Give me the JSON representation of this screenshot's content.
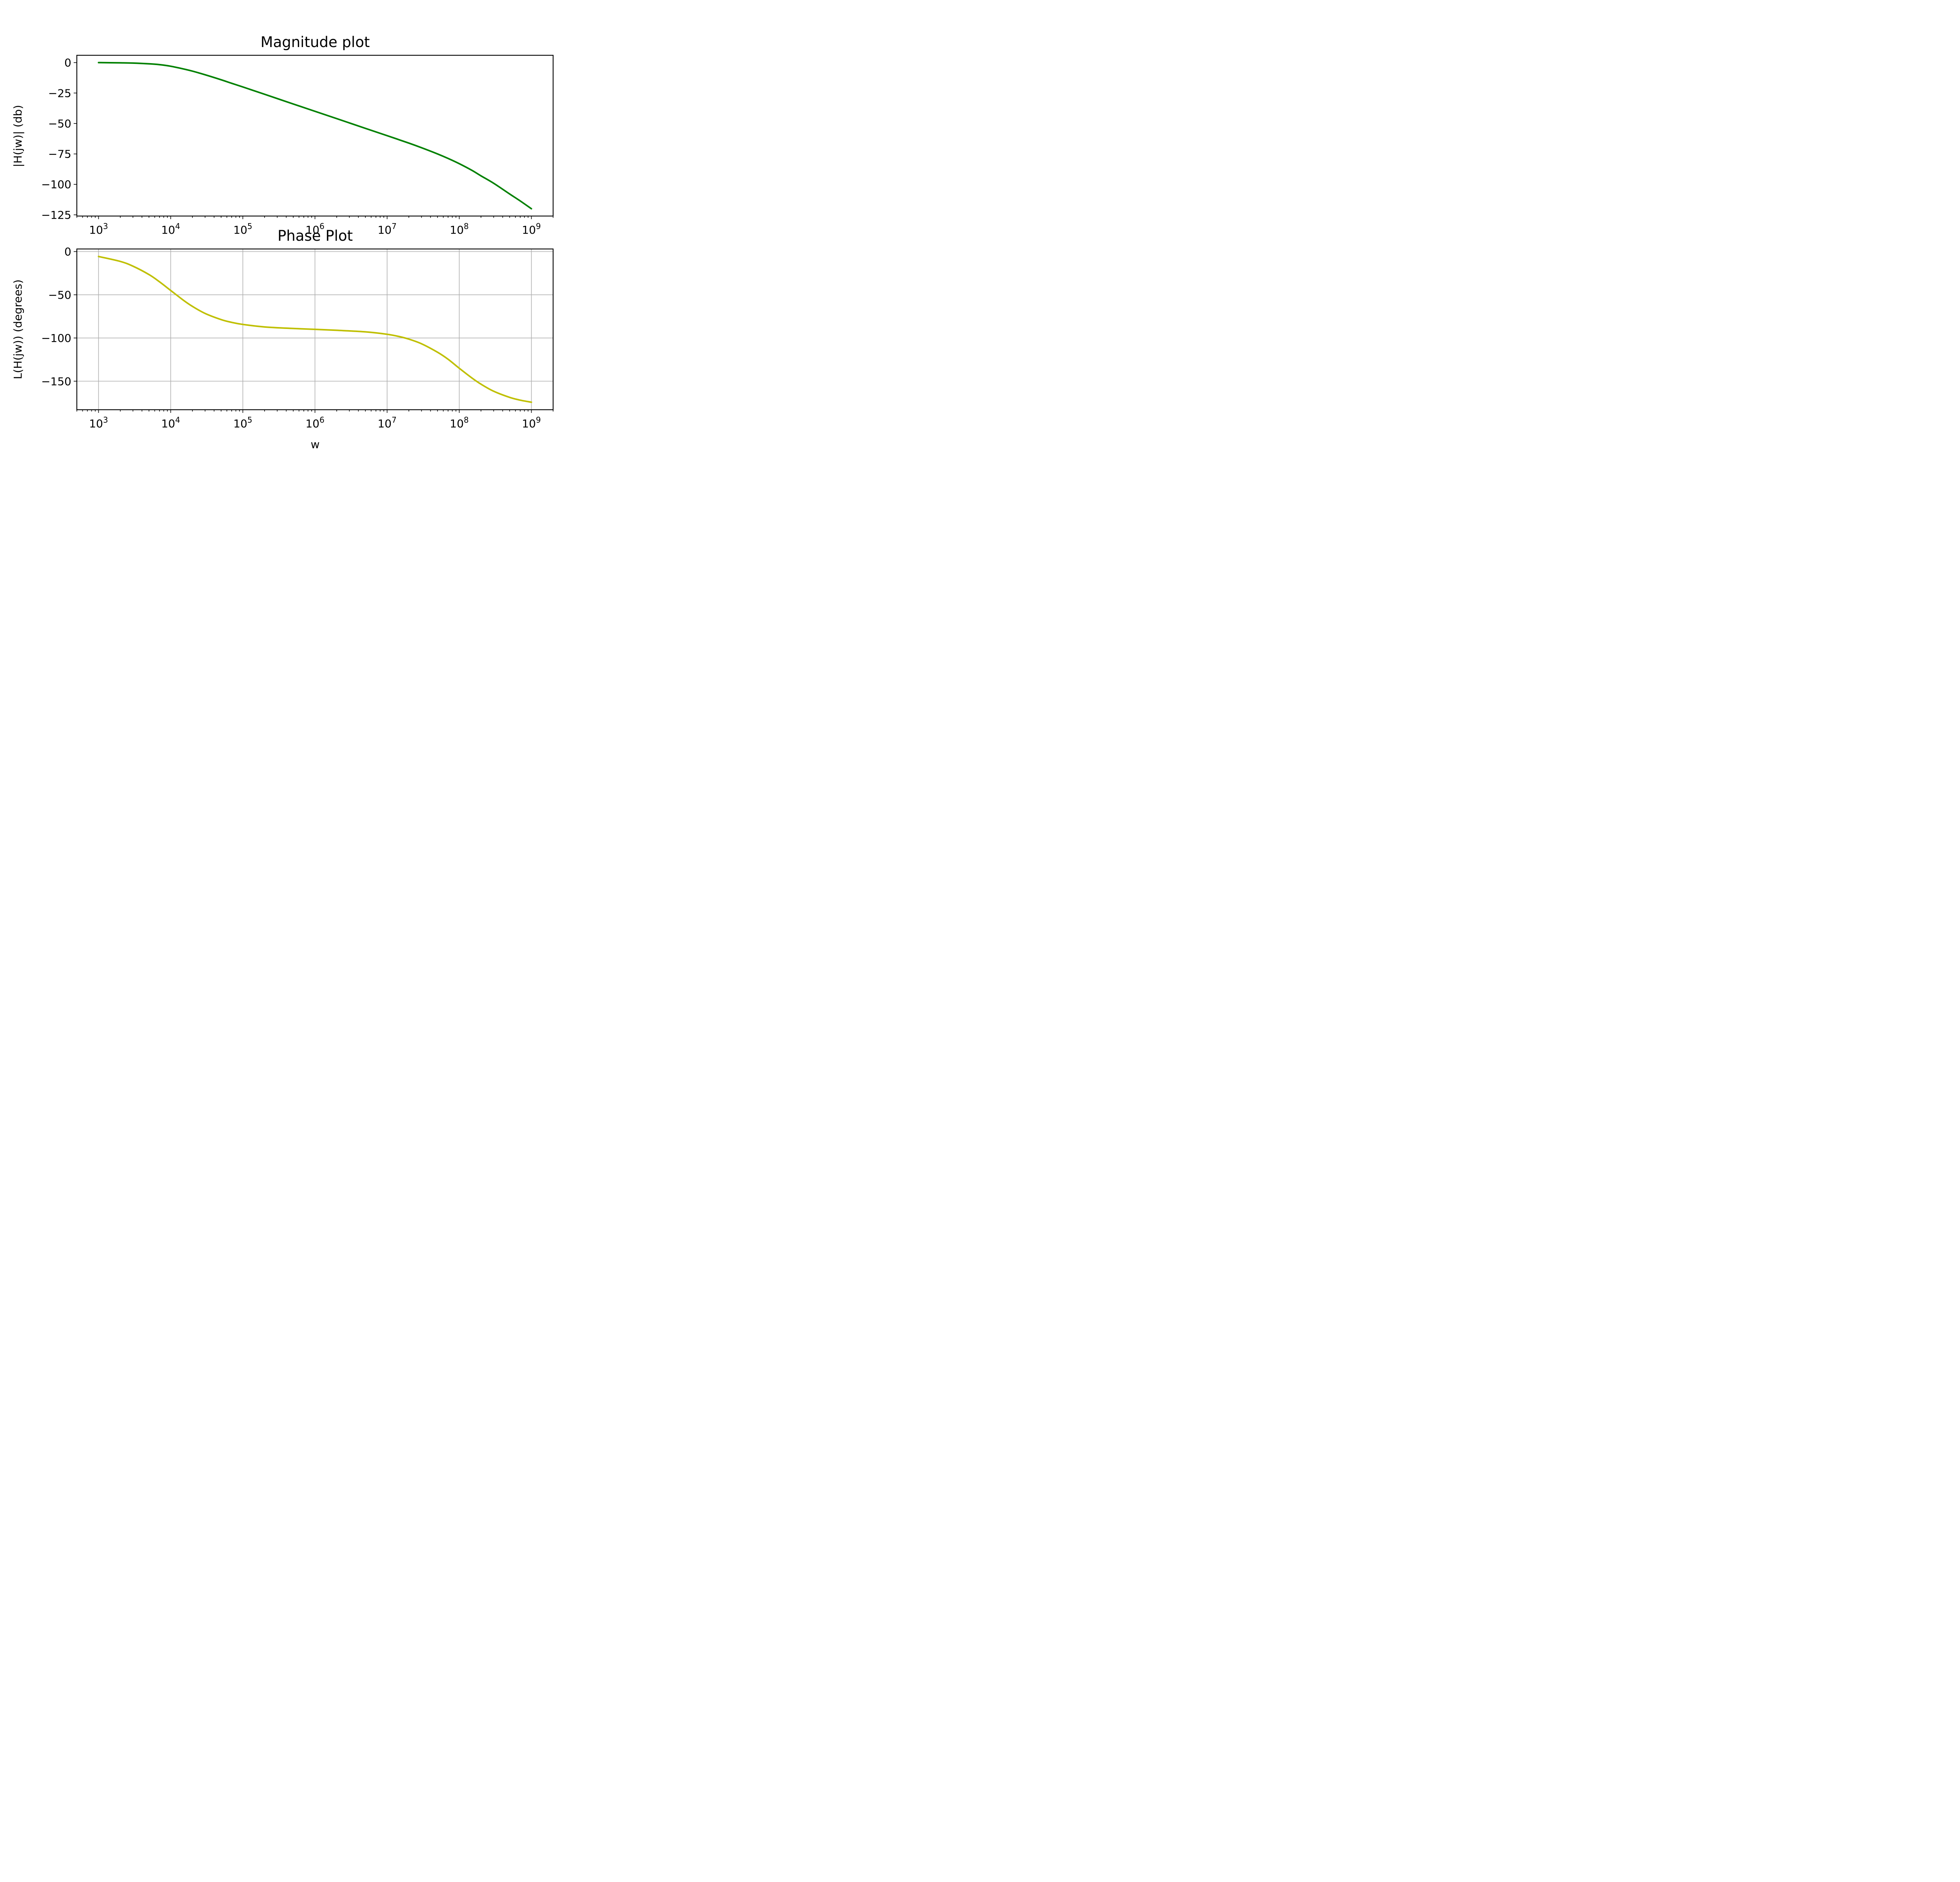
{
  "chart_data": [
    {
      "type": "line",
      "title": "Magnitude plot",
      "xlabel": "",
      "ylabel": "|H(jw)| (db)",
      "x_scale": "log",
      "xlim": [
        500,
        2000000000
      ],
      "ylim": [
        -126,
        6
      ],
      "grid": false,
      "x_ticks": [
        {
          "value": 1000,
          "base": "10",
          "exp": "3"
        },
        {
          "value": 10000,
          "base": "10",
          "exp": "4"
        },
        {
          "value": 100000,
          "base": "10",
          "exp": "5"
        },
        {
          "value": 1000000,
          "base": "10",
          "exp": "6"
        },
        {
          "value": 10000000,
          "base": "10",
          "exp": "7"
        },
        {
          "value": 100000000,
          "base": "10",
          "exp": "8"
        },
        {
          "value": 1000000000,
          "base": "10",
          "exp": "9"
        }
      ],
      "y_ticks": [
        {
          "value": 0,
          "label": "0"
        },
        {
          "value": -25,
          "label": "−25"
        },
        {
          "value": -50,
          "label": "−50"
        },
        {
          "value": -75,
          "label": "−75"
        },
        {
          "value": -100,
          "label": "−100"
        },
        {
          "value": -125,
          "label": "−125"
        }
      ],
      "series": [
        {
          "color": "#008000",
          "x": [
            1000,
            2000,
            3000,
            5000,
            7000,
            10000,
            15000,
            20000,
            30000,
            50000,
            70000,
            100000,
            200000,
            500000,
            1000000,
            2000000,
            5000000,
            10000000,
            20000000,
            30000000,
            50000000,
            70000000,
            100000000,
            150000000,
            200000000,
            300000000,
            500000000,
            700000000,
            1000000000
          ],
          "y": [
            0,
            -0.2,
            -0.4,
            -1,
            -1.7,
            -3,
            -5.2,
            -7,
            -10,
            -14.1,
            -17,
            -20,
            -26,
            -34,
            -40,
            -46,
            -54,
            -60,
            -66.1,
            -69.9,
            -75,
            -78.7,
            -83,
            -88.5,
            -93,
            -99.1,
            -107.9,
            -113.6,
            -120
          ]
        }
      ]
    },
    {
      "type": "line",
      "title": "Phase Plot",
      "xlabel": "w",
      "ylabel": "L(H(jw)) (degrees)",
      "x_scale": "log",
      "xlim": [
        500,
        2000000000
      ],
      "ylim": [
        -183,
        3
      ],
      "grid": true,
      "x_ticks": [
        {
          "value": 1000,
          "base": "10",
          "exp": "3"
        },
        {
          "value": 10000,
          "base": "10",
          "exp": "4"
        },
        {
          "value": 100000,
          "base": "10",
          "exp": "5"
        },
        {
          "value": 1000000,
          "base": "10",
          "exp": "6"
        },
        {
          "value": 10000000,
          "base": "10",
          "exp": "7"
        },
        {
          "value": 100000000,
          "base": "10",
          "exp": "8"
        },
        {
          "value": 1000000000,
          "base": "10",
          "exp": "9"
        }
      ],
      "y_ticks": [
        {
          "value": 0,
          "label": "0"
        },
        {
          "value": -50,
          "label": "−50"
        },
        {
          "value": -100,
          "label": "−100"
        },
        {
          "value": -150,
          "label": "−150"
        }
      ],
      "series": [
        {
          "color": "#bfbf00",
          "x": [
            1000,
            2000,
            3000,
            5000,
            7000,
            10000,
            15000,
            20000,
            30000,
            50000,
            70000,
            100000,
            200000,
            500000,
            1000000,
            2000000,
            5000000,
            10000000,
            15000000,
            20000000,
            30000000,
            50000000,
            70000000,
            100000000,
            150000000,
            200000000,
            300000000,
            500000000,
            700000000,
            1000000000
          ],
          "y": [
            -5.7,
            -11.4,
            -16.9,
            -26.6,
            -35,
            -45,
            -56.3,
            -63.4,
            -71.6,
            -78.7,
            -81.9,
            -84.3,
            -87.2,
            -89,
            -90,
            -91.1,
            -92.9,
            -95.7,
            -98.5,
            -101.3,
            -106.7,
            -116.5,
            -124.6,
            -135,
            -146.3,
            -153.4,
            -161.6,
            -168.7,
            -171.9,
            -174.3
          ]
        }
      ]
    }
  ]
}
